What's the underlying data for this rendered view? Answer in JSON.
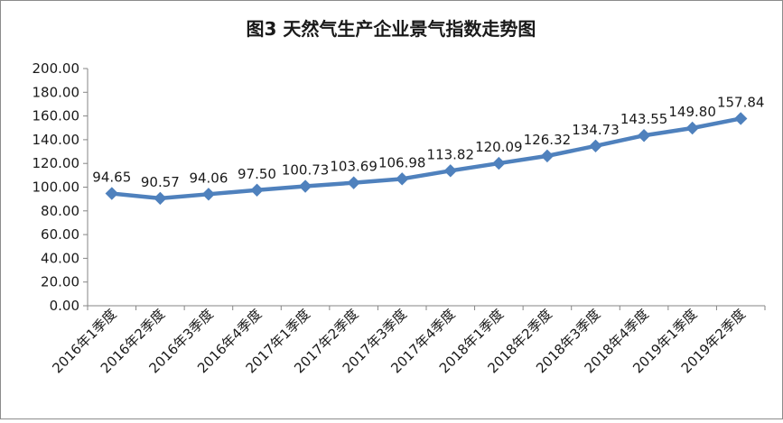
{
  "chart_data": {
    "type": "line",
    "title": "图3  天然气生产企业景气指数走势图",
    "xlabel": "",
    "ylabel": "",
    "categories": [
      "2016年1季度",
      "2016年2季度",
      "2016年3季度",
      "2016年4季度",
      "2017年1季度",
      "2017年2季度",
      "2017年3季度",
      "2017年4季度",
      "2018年1季度",
      "2018年2季度",
      "2018年3季度",
      "2018年4季度",
      "2019年1季度",
      "2019年2季度"
    ],
    "values": [
      94.65,
      90.57,
      94.06,
      97.5,
      100.73,
      103.69,
      106.98,
      113.82,
      120.09,
      126.32,
      134.73,
      143.55,
      149.8,
      157.84
    ],
    "value_labels": [
      "94.65",
      "90.57",
      "94.06",
      "97.50",
      "100.73",
      "103.69",
      "106.98",
      "113.82",
      "120.09",
      "126.32",
      "134.73",
      "143.55",
      "149.80",
      "157.84"
    ],
    "ylim": [
      0,
      200
    ],
    "yticks": [
      "0.00",
      "20.00",
      "40.00",
      "60.00",
      "80.00",
      "100.00",
      "120.00",
      "140.00",
      "160.00",
      "180.00",
      "200.00"
    ],
    "grid": false,
    "legend": "none",
    "line_color": "#4F81BD",
    "marker": "diamond"
  }
}
